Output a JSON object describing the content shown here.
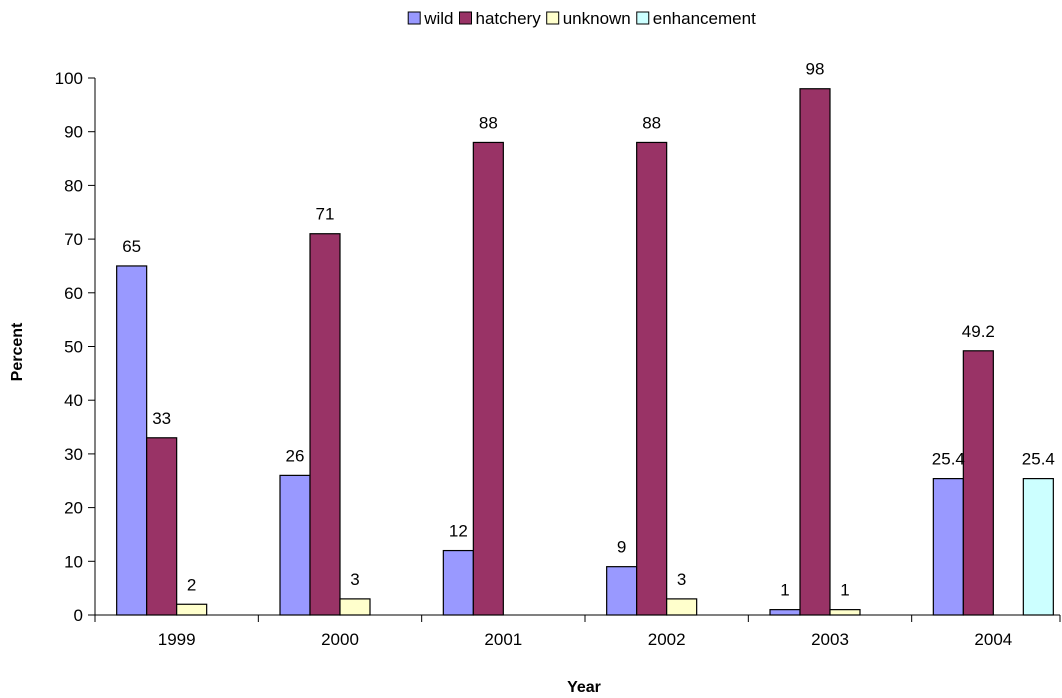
{
  "chart_data": {
    "type": "bar",
    "title": "",
    "xlabel": "Year",
    "ylabel": "Percent",
    "ylim": [
      0,
      100
    ],
    "yticks": [
      0,
      10,
      20,
      30,
      40,
      50,
      60,
      70,
      80,
      90,
      100
    ],
    "categories": [
      "1999",
      "2000",
      "2001",
      "2002",
      "2003",
      "2004"
    ],
    "series": [
      {
        "name": "wild",
        "color": "#9999ff",
        "values": [
          65,
          26,
          12,
          9,
          1,
          25.4
        ],
        "labels": [
          "65",
          "26",
          "12",
          "9",
          "1",
          "25.4"
        ]
      },
      {
        "name": "hatchery",
        "color": "#993366",
        "values": [
          33,
          71,
          88,
          88,
          98,
          49.2
        ],
        "labels": [
          "33",
          "71",
          "88",
          "88",
          "98",
          "49.2"
        ]
      },
      {
        "name": "unknown",
        "color": "#ffffcc",
        "values": [
          2,
          3,
          null,
          3,
          1,
          null
        ],
        "labels": [
          "2",
          "3",
          null,
          "3",
          "1",
          null
        ]
      },
      {
        "name": "enhancement",
        "color": "#ccffff",
        "values": [
          null,
          null,
          null,
          null,
          null,
          25.4
        ],
        "labels": [
          null,
          null,
          null,
          null,
          null,
          "25.4"
        ]
      }
    ],
    "legend_position": "top",
    "grid": false
  }
}
